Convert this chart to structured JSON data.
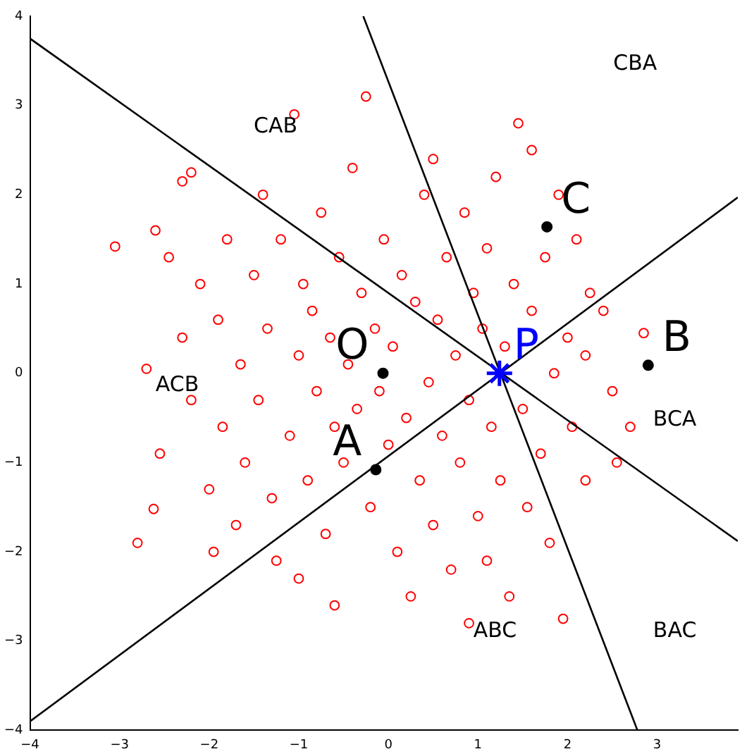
{
  "chart_data": {
    "type": "scatter",
    "xlim": [
      -4,
      3.9
    ],
    "xticks": [
      -4,
      -3,
      -2,
      -1,
      0,
      1,
      2,
      3
    ],
    "ylim": [
      -4,
      4
    ],
    "yticks": [
      -4,
      -3,
      -2,
      -1,
      0,
      1,
      2,
      3,
      4
    ],
    "grid": false,
    "legend": false,
    "annotations": [
      "CAB",
      "CBA",
      "ACB",
      "BCA",
      "ABC",
      "BAC"
    ],
    "series": [
      {
        "type": "scatter",
        "color": "#ff0000",
        "marker": "circle",
        "x": [
          -3.05,
          -2.8,
          -2.62,
          -2.6,
          -2.3,
          -2.2,
          -2.55,
          -2.3,
          -2.2,
          -2.1,
          -2.0,
          -1.9,
          -1.85,
          -1.8,
          -1.7,
          -1.65,
          -1.6,
          -1.5,
          -1.45,
          -1.4,
          -1.35,
          -1.3,
          -1.25,
          -1.2,
          -1.1,
          -1.05,
          -1.0,
          -1.0,
          -0.95,
          -0.9,
          -0.85,
          -0.8,
          -0.75,
          -0.7,
          -0.65,
          -0.6,
          -0.55,
          -0.5,
          -0.45,
          -0.4,
          -0.35,
          -0.3,
          -0.25,
          -0.2,
          -0.15,
          -0.1,
          -0.05,
          0.0,
          0.05,
          0.1,
          0.15,
          0.2,
          0.25,
          0.3,
          0.35,
          0.4,
          0.45,
          0.5,
          0.5,
          0.55,
          0.6,
          0.65,
          0.7,
          0.75,
          0.8,
          0.85,
          0.9,
          0.95,
          1.0,
          1.05,
          1.1,
          1.1,
          1.15,
          1.2,
          1.25,
          1.3,
          1.35,
          1.4,
          1.45,
          1.5,
          1.55,
          1.6,
          1.6,
          1.7,
          1.75,
          1.8,
          1.85,
          1.9,
          1.95,
          2.0,
          2.05,
          2.1,
          2.2,
          2.25,
          2.4,
          2.5,
          2.55,
          2.7,
          2.85,
          2.2,
          -2.7,
          -1.95,
          -0.6,
          0.9,
          -2.45
        ],
        "values": [
          1.42,
          -1.9,
          -1.52,
          1.6,
          2.15,
          2.25,
          -0.9,
          0.4,
          -0.3,
          1.0,
          -1.3,
          0.6,
          -0.6,
          1.5,
          -1.7,
          0.1,
          -1.0,
          1.1,
          -0.3,
          2.0,
          0.5,
          -1.4,
          -2.1,
          1.5,
          -0.7,
          2.9,
          0.2,
          -2.3,
          1.0,
          -1.2,
          0.7,
          -0.2,
          1.8,
          -1.8,
          0.4,
          -0.6,
          1.3,
          -1.0,
          0.1,
          2.3,
          -0.4,
          0.9,
          3.1,
          -1.5,
          0.5,
          -0.2,
          1.5,
          -0.8,
          0.3,
          -2.0,
          1.1,
          -0.5,
          -2.5,
          0.8,
          -1.2,
          2.0,
          -0.1,
          2.4,
          -1.7,
          0.6,
          -0.7,
          1.3,
          -2.2,
          0.2,
          -1.0,
          1.8,
          -0.3,
          0.9,
          -1.6,
          0.5,
          -2.1,
          1.4,
          -0.6,
          2.2,
          -1.2,
          0.3,
          -2.5,
          1.0,
          2.8,
          -0.4,
          -1.5,
          2.5,
          0.7,
          -0.9,
          1.3,
          -1.9,
          0.0,
          2.0,
          -2.75,
          0.4,
          -0.6,
          1.5,
          -1.2,
          0.9,
          0.7,
          -0.2,
          -1.0,
          -0.6,
          0.45,
          0.2,
          0.05,
          -2.0,
          -2.6,
          -2.8,
          1.3
        ]
      },
      {
        "type": "line",
        "color": "#000000",
        "marker": "none",
        "x": [
          -4,
          3.9
        ],
        "values": [
          3.75,
          -1.88
        ]
      },
      {
        "type": "line",
        "color": "#000000",
        "marker": "none",
        "x": [
          -4,
          3.9
        ],
        "values": [
          -3.9,
          1.97
        ]
      },
      {
        "type": "line",
        "color": "#000000",
        "marker": "none",
        "x": [
          -0.28,
          2.78
        ],
        "values": [
          4,
          -4
        ]
      },
      {
        "type": "scatter",
        "name": "O",
        "color": "#000000",
        "marker": "circle",
        "x": [
          -0.06
        ],
        "values": [
          0.0
        ]
      },
      {
        "type": "scatter",
        "name": "A",
        "color": "#000000",
        "marker": "circle",
        "x": [
          -0.14
        ],
        "values": [
          -1.08
        ]
      },
      {
        "type": "scatter",
        "name": "B",
        "color": "#000000",
        "marker": "circle",
        "x": [
          2.9
        ],
        "values": [
          0.09
        ]
      },
      {
        "type": "scatter",
        "name": "C",
        "color": "#000000",
        "marker": "circle",
        "x": [
          1.77
        ],
        "values": [
          1.64
        ]
      },
      {
        "type": "scatter",
        "name": "P",
        "color": "#0000ff",
        "marker": "cross",
        "x": [
          1.24
        ],
        "values": [
          0.0
        ]
      }
    ]
  }
}
